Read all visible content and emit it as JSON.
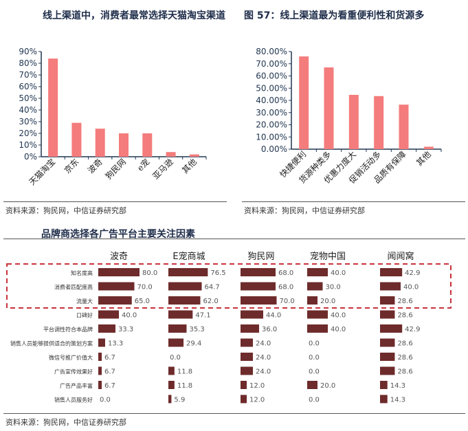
{
  "chart_data": [
    {
      "type": "bar",
      "title": "线上渠道中，消费者最常选择天猫淘宝渠道",
      "categories": [
        "天猫淘宝",
        "京东",
        "波奇",
        "狗民网",
        "e宠",
        "亚马逊",
        "其他"
      ],
      "values": [
        84,
        29,
        24,
        20,
        20,
        4,
        2
      ],
      "ylim": [
        0,
        90
      ],
      "yticks": [
        "0%",
        "10%",
        "20%",
        "30%",
        "40%",
        "50%",
        "60%",
        "70%",
        "80%",
        "90%"
      ],
      "color": "#f47c7c",
      "source": "资料来源：狗民网，中信证券研究部"
    },
    {
      "type": "bar",
      "title": "图 57：线上渠道最为看重便利性和货源多",
      "categories": [
        "快捷便利",
        "货源种类多",
        "优惠力度大",
        "促销活动多",
        "品质有保障",
        "其他"
      ],
      "values": [
        76,
        67,
        44.5,
        43.5,
        36.5,
        2
      ],
      "ylim": [
        0,
        80
      ],
      "yticks": [
        "0.00%",
        "10.00%",
        "20.00%",
        "30.00%",
        "40.00%",
        "50.00%",
        "60.00%",
        "70.00%",
        "80.00%"
      ],
      "color": "#f47c7c",
      "source": "资料来源：狗民网，中信证券研究部"
    },
    {
      "type": "table",
      "title": "品牌商选择各广告平台主要关注因素",
      "columns": [
        "波奇",
        "E宠商城",
        "狗民网",
        "宠物中国",
        "闻闻窝"
      ],
      "rows": [
        "知名度高",
        "消费者匹配度高",
        "流量大",
        "口碑好",
        "平台调性符合本品牌",
        "销售人员能够提供适合的策划方案",
        "微信号推广价值大",
        "广告宣传效果好",
        "广告产品丰富",
        "销售人员服务好"
      ],
      "values": [
        [
          80.0,
          76.5,
          68.0,
          40.0,
          42.9
        ],
        [
          70.0,
          64.7,
          68.0,
          30.0,
          40.0
        ],
        [
          65.0,
          62.0,
          70.0,
          20.0,
          28.6
        ],
        [
          40.0,
          47.1,
          44.0,
          40.0,
          28.6
        ],
        [
          33.3,
          35.3,
          36.0,
          40.0,
          42.9
        ],
        [
          13.3,
          29.4,
          24.0,
          0.0,
          28.6
        ],
        [
          6.7,
          0.0,
          24.0,
          0.0,
          28.6
        ],
        [
          6.7,
          11.8,
          24.0,
          0.0,
          28.6
        ],
        [
          6.7,
          11.8,
          12.0,
          20.0,
          14.3
        ],
        [
          0.0,
          5.9,
          12.0,
          0.0,
          14.3
        ]
      ],
      "color": "#6e2b2b",
      "highlight_color": "#c8323c",
      "source": "资料来源：狗民网，中信证券研究部"
    }
  ]
}
